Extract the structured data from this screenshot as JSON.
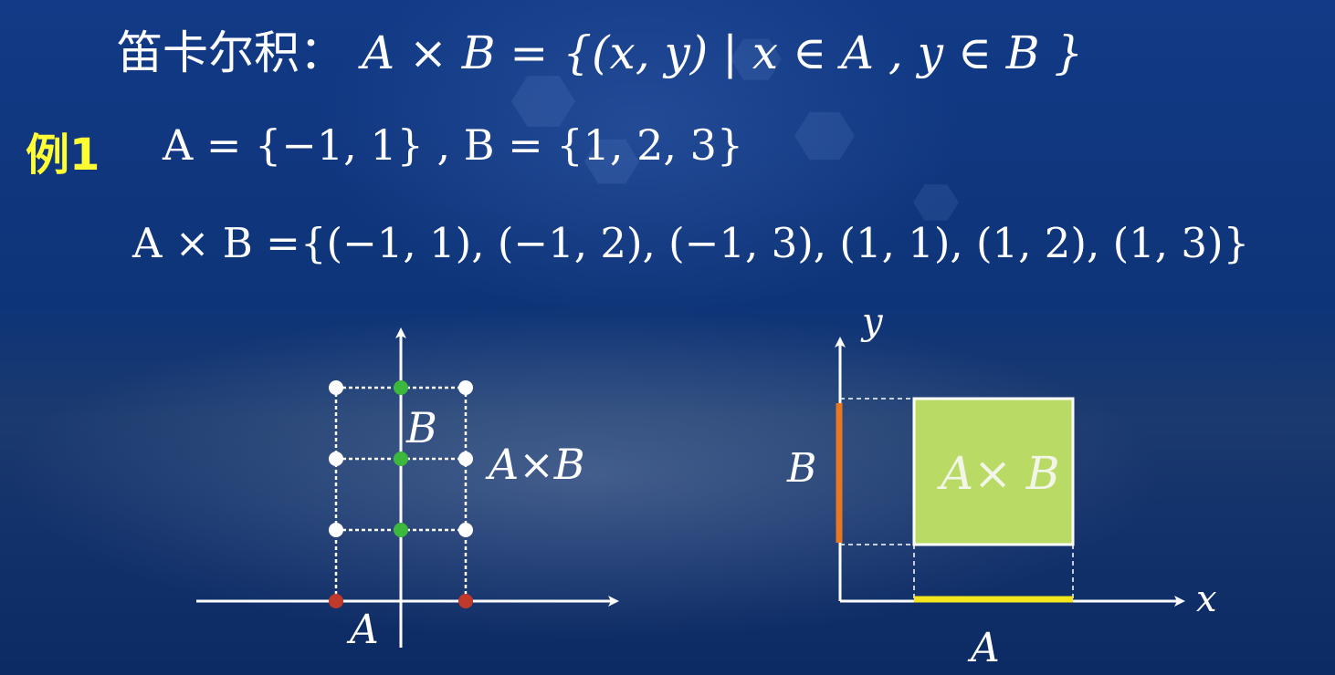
{
  "title": {
    "term": "笛卡尔积：",
    "formula": "A × B = {(x, y) | x ∈ A , y ∈ B }"
  },
  "example": {
    "label": "例1",
    "sets": "A = {−1, 1} ,  B = {1, 2, 3}",
    "product": "A × B ={(−1, 1), (−1, 2), (−1, 3), (1, 1), (1, 2), (1, 3)}"
  },
  "left_diagram": {
    "label_b": "B",
    "label_product": "A×B",
    "label_a": "A",
    "set_a": [
      -1,
      1
    ],
    "set_b": [
      1,
      2,
      3
    ],
    "colors": {
      "a_points": "#c0392b",
      "b_points": "#3cb83c",
      "product_points": "#ffffff"
    }
  },
  "right_diagram": {
    "axis_y": "y",
    "axis_x": "x",
    "label_b": "B",
    "label_product": "A× B",
    "label_a": "A",
    "colors": {
      "b_segment": "#e87722",
      "a_segment": "#f5e51c",
      "product_fill": "#b9db66"
    }
  },
  "colors": {
    "example_label": "#ffff33",
    "text": "#ffffff"
  }
}
